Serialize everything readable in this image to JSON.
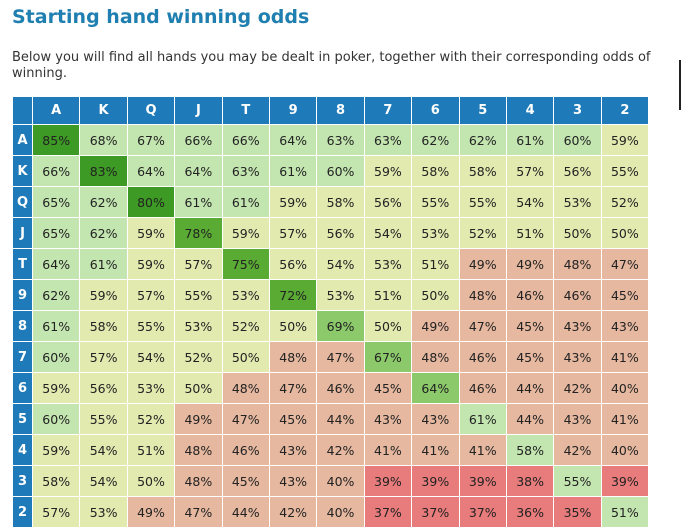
{
  "page": {
    "title": "Starting hand winning odds",
    "intro": "Below you will find all hands you may be dealt in poker, together with their corresponding odds of winning."
  },
  "table": {
    "columns": [
      "A",
      "K",
      "Q",
      "J",
      "T",
      "9",
      "8",
      "7",
      "6",
      "5",
      "4",
      "3",
      "2"
    ],
    "rows": [
      {
        "label": "A",
        "values": [
          "85%",
          "68%",
          "67%",
          "66%",
          "66%",
          "64%",
          "63%",
          "63%",
          "62%",
          "62%",
          "61%",
          "60%",
          "59%"
        ]
      },
      {
        "label": "K",
        "values": [
          "66%",
          "83%",
          "64%",
          "64%",
          "63%",
          "61%",
          "60%",
          "59%",
          "58%",
          "58%",
          "57%",
          "56%",
          "55%"
        ]
      },
      {
        "label": "Q",
        "values": [
          "65%",
          "62%",
          "80%",
          "61%",
          "61%",
          "59%",
          "58%",
          "56%",
          "55%",
          "55%",
          "54%",
          "53%",
          "52%"
        ]
      },
      {
        "label": "J",
        "values": [
          "65%",
          "62%",
          "59%",
          "78%",
          "59%",
          "57%",
          "56%",
          "54%",
          "53%",
          "52%",
          "51%",
          "50%",
          "50%"
        ]
      },
      {
        "label": "T",
        "values": [
          "64%",
          "61%",
          "59%",
          "57%",
          "75%",
          "56%",
          "54%",
          "53%",
          "51%",
          "49%",
          "49%",
          "48%",
          "47%"
        ]
      },
      {
        "label": "9",
        "values": [
          "62%",
          "59%",
          "57%",
          "55%",
          "53%",
          "72%",
          "53%",
          "51%",
          "50%",
          "48%",
          "46%",
          "46%",
          "45%"
        ]
      },
      {
        "label": "8",
        "values": [
          "61%",
          "58%",
          "55%",
          "53%",
          "52%",
          "50%",
          "69%",
          "50%",
          "49%",
          "47%",
          "45%",
          "43%",
          "43%"
        ]
      },
      {
        "label": "7",
        "values": [
          "60%",
          "57%",
          "54%",
          "52%",
          "50%",
          "48%",
          "47%",
          "67%",
          "48%",
          "46%",
          "45%",
          "43%",
          "41%"
        ]
      },
      {
        "label": "6",
        "values": [
          "59%",
          "56%",
          "53%",
          "50%",
          "48%",
          "47%",
          "46%",
          "45%",
          "64%",
          "46%",
          "44%",
          "42%",
          "40%"
        ]
      },
      {
        "label": "5",
        "values": [
          "60%",
          "55%",
          "52%",
          "49%",
          "47%",
          "45%",
          "44%",
          "43%",
          "43%",
          "61%",
          "44%",
          "43%",
          "41%"
        ]
      },
      {
        "label": "4",
        "values": [
          "59%",
          "54%",
          "51%",
          "48%",
          "46%",
          "43%",
          "42%",
          "41%",
          "41%",
          "41%",
          "58%",
          "42%",
          "40%"
        ]
      },
      {
        "label": "3",
        "values": [
          "58%",
          "54%",
          "50%",
          "48%",
          "45%",
          "43%",
          "40%",
          "39%",
          "39%",
          "39%",
          "38%",
          "55%",
          "39%"
        ]
      },
      {
        "label": "2",
        "values": [
          "57%",
          "53%",
          "49%",
          "47%",
          "44%",
          "42%",
          "40%",
          "37%",
          "37%",
          "37%",
          "36%",
          "35%",
          "51%"
        ]
      }
    ]
  },
  "colors": {
    "header": "#1e7ab8",
    "title": "#1f7fb0",
    "diagonal_top": "#3d9a24",
    "diagonal_mid": "#5aab33",
    "diagonal_low": "#8cc96a",
    "high": "#c3e6b0",
    "mid": "#e2eab0",
    "low": "#e6b8a0",
    "min": "#e87b7b"
  }
}
